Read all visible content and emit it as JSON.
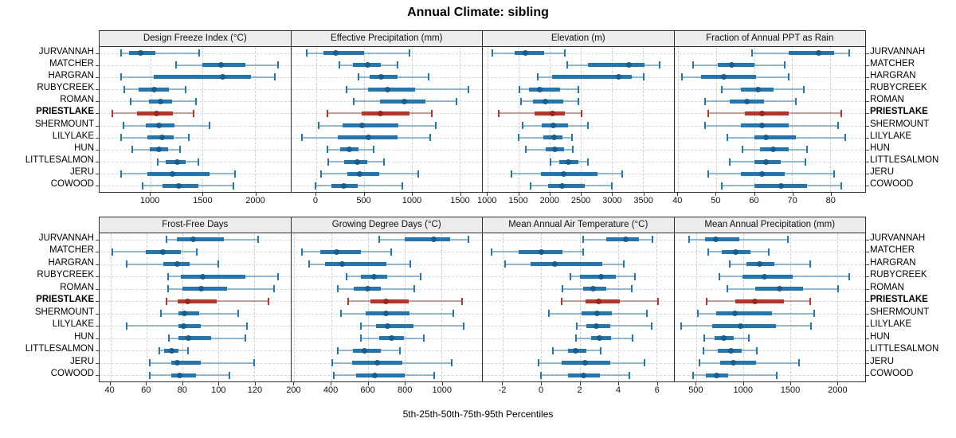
{
  "title": "Annual Climate: sibling",
  "caption": "5th-25th-50th-75th-95th Percentiles",
  "percentile_labels": [
    "5th",
    "25th",
    "50th",
    "75th",
    "95th"
  ],
  "sites": [
    "JURVANNAH",
    "MATCHER",
    "HARGRAN",
    "RUBYCREEK",
    "ROMAN",
    "PRIESTLAKE",
    "SHERMOUNT",
    "LILYLAKE",
    "HUN",
    "LITTLESALMON",
    "JERU",
    "COWOOD"
  ],
  "highlighted_site": "PRIESTLAKE",
  "colors": {
    "series_blue": "#1f77b4",
    "series_blue_dot": "#175d8e",
    "highlight_red": "#bd3228",
    "highlight_red_dot": "#99261e",
    "panel_header_bg": "#ececec",
    "gridline": "#d0d0d0"
  },
  "chart_data": {
    "type": "box-percentile-dotplot",
    "orientation": "horizontal",
    "note": "Each row shows 5th-25th-50th-75th-95th percentiles per site",
    "panels": [
      {
        "title": "Design Freeze Index (°C)",
        "row": 0,
        "xlim": [
          515,
          2340
        ],
        "ticks": [
          1000,
          1500,
          2000
        ],
        "values": [
          [
            720,
            800,
            910,
            1050,
            1470
          ],
          [
            1250,
            1500,
            1680,
            1910,
            2225
          ],
          [
            720,
            1030,
            1690,
            1960,
            2190
          ],
          [
            750,
            885,
            1040,
            1180,
            1340
          ],
          [
            810,
            990,
            1100,
            1210,
            1440
          ],
          [
            635,
            875,
            1060,
            1215,
            1415
          ],
          [
            740,
            955,
            1085,
            1230,
            1570
          ],
          [
            720,
            975,
            1115,
            1220,
            1365
          ],
          [
            825,
            995,
            1085,
            1170,
            1285
          ],
          [
            1075,
            1150,
            1255,
            1340,
            1460
          ],
          [
            720,
            975,
            1210,
            1570,
            1810
          ],
          [
            925,
            1115,
            1275,
            1460,
            1795
          ]
        ]
      },
      {
        "title": "Effective Precipitation (mm)",
        "row": 0,
        "xlim": [
          -260,
          1735
        ],
        "ticks": [
          0,
          500,
          1000,
          1500
        ],
        "values": [
          [
            -100,
            80,
            210,
            500,
            980
          ],
          [
            240,
            385,
            540,
            680,
            850
          ],
          [
            440,
            560,
            680,
            855,
            1175
          ],
          [
            315,
            545,
            745,
            1035,
            1590
          ],
          [
            390,
            665,
            920,
            1140,
            1470
          ],
          [
            115,
            475,
            675,
            980,
            1210
          ],
          [
            25,
            275,
            485,
            860,
            1250
          ],
          [
            -145,
            225,
            545,
            855,
            1195
          ],
          [
            120,
            255,
            350,
            440,
            605
          ],
          [
            130,
            290,
            435,
            535,
            710
          ],
          [
            50,
            325,
            455,
            660,
            1070
          ],
          [
            -10,
            160,
            290,
            435,
            900
          ]
        ]
      },
      {
        "title": "Elevation (m)",
        "row": 0,
        "xlim": [
          920,
          3995
        ],
        "ticks": [
          1000,
          1500,
          2000,
          2500,
          3000,
          3500
        ],
        "values": [
          [
            1075,
            1435,
            1610,
            1910,
            2240
          ],
          [
            2285,
            2620,
            3280,
            3525,
            3770
          ],
          [
            1800,
            2040,
            3115,
            3320,
            3515
          ],
          [
            1510,
            1670,
            1835,
            2165,
            2465
          ],
          [
            1535,
            1730,
            1930,
            2220,
            2455
          ],
          [
            1180,
            1760,
            2045,
            2245,
            2510
          ],
          [
            1565,
            1875,
            2060,
            2295,
            2615
          ],
          [
            1500,
            1900,
            2065,
            2210,
            2360
          ],
          [
            1610,
            1940,
            2080,
            2230,
            2365
          ],
          [
            2005,
            2155,
            2305,
            2455,
            2615
          ],
          [
            1385,
            1855,
            2220,
            2765,
            3165
          ],
          [
            1695,
            1975,
            2195,
            2570,
            3000
          ]
        ]
      },
      {
        "title": "Fraction of Annual PPT as Rain",
        "row": 0,
        "xlim": [
          39,
          89.2
        ],
        "ticks": [
          40,
          50,
          60,
          70,
          80
        ],
        "values": [
          [
            59.5,
            69,
            77,
            81,
            85
          ],
          [
            44,
            50.5,
            54,
            60,
            68
          ],
          [
            41,
            46,
            52,
            60.5,
            69
          ],
          [
            51.5,
            56.5,
            61,
            65,
            73
          ],
          [
            47,
            53.5,
            58,
            62.5,
            71
          ],
          [
            48,
            57.5,
            62,
            69,
            83
          ],
          [
            47,
            56.5,
            62,
            69,
            82
          ],
          [
            53,
            60,
            63,
            71,
            84
          ],
          [
            57,
            61.5,
            65,
            69,
            74
          ],
          [
            53.5,
            60,
            63,
            67,
            73.5
          ],
          [
            48,
            56.5,
            62,
            68,
            81
          ],
          [
            51.5,
            60,
            67,
            74,
            83
          ]
        ]
      },
      {
        "title": "Frost-Free Days",
        "row": 1,
        "xlim": [
          34,
          140
        ],
        "ticks": [
          40,
          60,
          80,
          100,
          120
        ],
        "values": [
          [
            71,
            77,
            86,
            103,
            122
          ],
          [
            41,
            59.5,
            69,
            79,
            88
          ],
          [
            49,
            69.5,
            77,
            84,
            100
          ],
          [
            72,
            79,
            91.5,
            115,
            133
          ],
          [
            72,
            80,
            90.5,
            105,
            131
          ],
          [
            71,
            77.5,
            83,
            99,
            128
          ],
          [
            68,
            78,
            81,
            89.5,
            111
          ],
          [
            49,
            78,
            80.5,
            90,
            116
          ],
          [
            72.5,
            78,
            83.5,
            96,
            115
          ],
          [
            67,
            70,
            74,
            78,
            83
          ],
          [
            62,
            74,
            77,
            90,
            120
          ],
          [
            62,
            74,
            78.5,
            87.5,
            106
          ]
        ]
      },
      {
        "title": "Growing Degree Days (°C)",
        "row": 1,
        "xlim": [
          183,
          1220
        ],
        "ticks": [
          200,
          400,
          600,
          800,
          1000
        ],
        "values": [
          [
            660,
            800,
            960,
            1045,
            1145
          ],
          [
            240,
            340,
            430,
            560,
            727
          ],
          [
            280,
            367,
            460,
            700,
            830
          ],
          [
            482,
            560,
            633,
            705,
            888
          ],
          [
            438,
            524,
            600,
            672,
            850
          ],
          [
            492,
            615,
            698,
            820,
            1110
          ],
          [
            454,
            586,
            698,
            826,
            1064
          ],
          [
            564,
            644,
            708,
            848,
            1119
          ],
          [
            562,
            662,
            727,
            795,
            903
          ],
          [
            435,
            520,
            583,
            668,
            773
          ],
          [
            406,
            514,
            650,
            788,
            1054
          ],
          [
            416,
            536,
            639,
            800,
            960
          ]
        ]
      },
      {
        "title": "Mean Annual Air Temperature (°C)",
        "row": 1,
        "xlim": [
          -3.05,
          6.9
        ],
        "ticks": [
          -2,
          0,
          2,
          4,
          6
        ],
        "values": [
          [
            2.2,
            3.4,
            4.4,
            5.1,
            5.8
          ],
          [
            -2.6,
            -1.2,
            0,
            1.1,
            2.2
          ],
          [
            -1.9,
            -0.55,
            0.7,
            3.2,
            4.3
          ],
          [
            1.5,
            2.0,
            3.1,
            3.9,
            4.9
          ],
          [
            1.1,
            2.2,
            2.7,
            3.4,
            4.7
          ],
          [
            1.05,
            2.3,
            3.0,
            4.1,
            6.1
          ],
          [
            0.4,
            2.1,
            2.9,
            3.7,
            5.5
          ],
          [
            1.85,
            2.35,
            2.85,
            3.6,
            5.75
          ],
          [
            1.8,
            2.6,
            3.05,
            3.65,
            4.75
          ],
          [
            0.6,
            1.4,
            1.8,
            2.35,
            3.1
          ],
          [
            -0.15,
            1.05,
            2.3,
            3.6,
            5.4
          ],
          [
            0,
            1.4,
            2.2,
            3.05,
            4.6
          ]
        ]
      },
      {
        "title": "Mean Annual Precipitation (mm)",
        "row": 1,
        "xlim": [
          265,
          2300
        ],
        "ticks": [
          500,
          1000,
          1500,
          2000
        ],
        "values": [
          [
            424,
            596,
            709,
            955,
            1480
          ],
          [
            630,
            770,
            918,
            1076,
            1273
          ],
          [
            856,
            1030,
            1170,
            1330,
            1710
          ],
          [
            748,
            990,
            1228,
            1527,
            2126
          ],
          [
            828,
            1124,
            1387,
            1641,
            2014
          ],
          [
            608,
            918,
            1124,
            1434,
            1717
          ],
          [
            517,
            709,
            912,
            1302,
            1759
          ],
          [
            339,
            667,
            968,
            1350,
            1726
          ],
          [
            582,
            692,
            791,
            898,
            1062
          ],
          [
            574,
            729,
            870,
            983,
            1146
          ],
          [
            531,
            752,
            898,
            1133,
            1595
          ],
          [
            466,
            602,
            714,
            841,
            1358
          ]
        ]
      }
    ]
  }
}
